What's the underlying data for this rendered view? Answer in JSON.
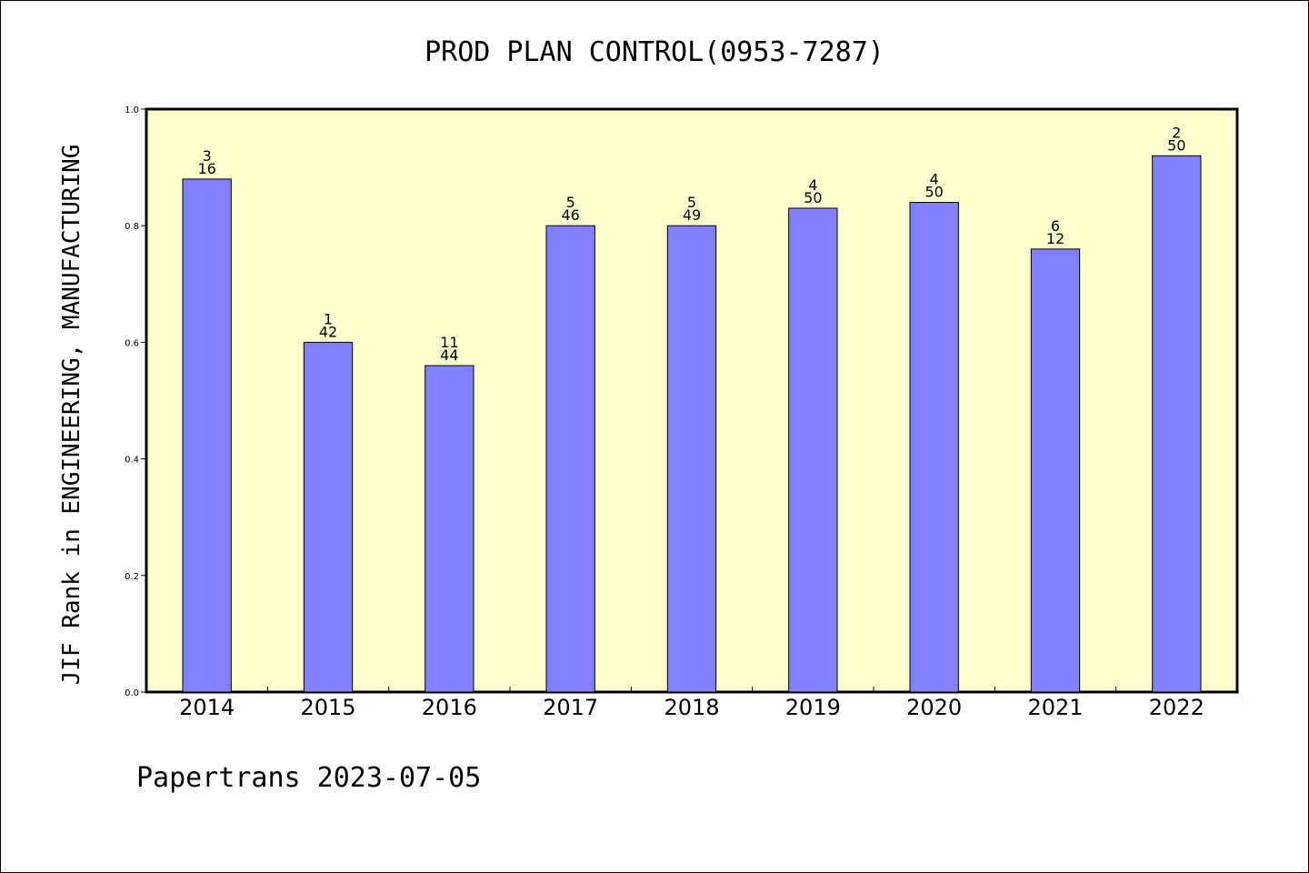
{
  "chart_data": {
    "type": "bar",
    "title": "PROD PLAN CONTROL(0953-7287)",
    "ylabel": "JIF Rank in ENGINEERING, MANUFACTURING",
    "xlabel": "",
    "ylim": [
      0,
      1.0
    ],
    "yticks": [
      "0.0",
      "0.2",
      "0.4",
      "0.6",
      "0.8",
      "1.0"
    ],
    "categories": [
      "2014",
      "2015",
      "2016",
      "2017",
      "2018",
      "2019",
      "2020",
      "2021",
      "2022"
    ],
    "values": [
      0.88,
      0.6,
      0.56,
      0.8,
      0.8,
      0.83,
      0.84,
      0.76,
      0.92
    ],
    "rank": [
      "3",
      "1",
      "11",
      "5",
      "5",
      "4",
      "4",
      "6",
      "2"
    ],
    "total": [
      "16",
      "42",
      "44",
      "46",
      "49",
      "50",
      "50",
      "12",
      "50"
    ],
    "plot_background": "#ffffd0",
    "bar_color": "#8080ff",
    "grid": false,
    "legend": "none"
  },
  "footer": "Papertrans 2023-07-05"
}
